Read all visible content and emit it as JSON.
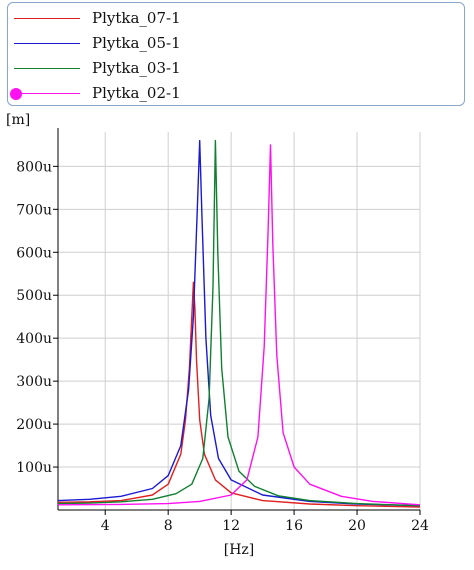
{
  "chart_data": {
    "type": "line",
    "x_unit": "[Hz]",
    "y_unit": "[m]",
    "xlim": [
      1,
      24
    ],
    "ylim": [
      0,
      880
    ],
    "x_ticks": [
      4,
      8,
      12,
      16,
      20,
      24
    ],
    "x_tick_labels": [
      "4",
      "8",
      "12",
      "16",
      "20",
      "24"
    ],
    "y_ticks": [
      100,
      200,
      300,
      400,
      500,
      600,
      700,
      800
    ],
    "y_tick_labels": [
      "100u",
      "200u",
      "300u",
      "400u",
      "500u",
      "600u",
      "700u",
      "800u"
    ],
    "grid": true,
    "legend_position": "top",
    "series": [
      {
        "name": "Plytka_07-1",
        "color": "#e02020",
        "marker": false,
        "points": [
          [
            1,
            18
          ],
          [
            3,
            19
          ],
          [
            5,
            22
          ],
          [
            7,
            35
          ],
          [
            8,
            60
          ],
          [
            8.8,
            130
          ],
          [
            9.1,
            210
          ],
          [
            9.35,
            330
          ],
          [
            9.5,
            450
          ],
          [
            9.6,
            530
          ],
          [
            9.7,
            470
          ],
          [
            9.8,
            350
          ],
          [
            10,
            210
          ],
          [
            10.3,
            130
          ],
          [
            11,
            70
          ],
          [
            12,
            40
          ],
          [
            14,
            22
          ],
          [
            17,
            14
          ],
          [
            20,
            10
          ],
          [
            24,
            7
          ]
        ]
      },
      {
        "name": "Plytka_05-1",
        "color": "#1a1ad0",
        "marker": false,
        "points": [
          [
            1,
            22
          ],
          [
            3,
            25
          ],
          [
            5,
            32
          ],
          [
            7,
            50
          ],
          [
            8,
            80
          ],
          [
            8.8,
            150
          ],
          [
            9.3,
            280
          ],
          [
            9.6,
            450
          ],
          [
            9.85,
            700
          ],
          [
            10,
            860
          ],
          [
            10.15,
            680
          ],
          [
            10.4,
            400
          ],
          [
            10.7,
            220
          ],
          [
            11.2,
            120
          ],
          [
            12,
            70
          ],
          [
            14,
            35
          ],
          [
            17,
            20
          ],
          [
            20,
            14
          ],
          [
            24,
            10
          ]
        ]
      },
      {
        "name": "Plytka_03-1",
        "color": "#108030",
        "marker": false,
        "points": [
          [
            1,
            15
          ],
          [
            3,
            16
          ],
          [
            5,
            19
          ],
          [
            7,
            25
          ],
          [
            8.5,
            38
          ],
          [
            9.5,
            60
          ],
          [
            10.2,
            120
          ],
          [
            10.6,
            260
          ],
          [
            10.85,
            520
          ],
          [
            11,
            860
          ],
          [
            11.15,
            600
          ],
          [
            11.4,
            330
          ],
          [
            11.8,
            170
          ],
          [
            12.5,
            90
          ],
          [
            13.5,
            55
          ],
          [
            15,
            33
          ],
          [
            17,
            22
          ],
          [
            20,
            15
          ],
          [
            24,
            10
          ]
        ]
      },
      {
        "name": "Plytka_02-1",
        "color": "#ff10f0",
        "marker": true,
        "points": [
          [
            1,
            12
          ],
          [
            5,
            13
          ],
          [
            8,
            15
          ],
          [
            10,
            20
          ],
          [
            12,
            35
          ],
          [
            13,
            70
          ],
          [
            13.7,
            170
          ],
          [
            14.1,
            380
          ],
          [
            14.35,
            650
          ],
          [
            14.5,
            850
          ],
          [
            14.65,
            620
          ],
          [
            14.9,
            360
          ],
          [
            15.3,
            180
          ],
          [
            16,
            100
          ],
          [
            17,
            60
          ],
          [
            19,
            32
          ],
          [
            21,
            20
          ],
          [
            24,
            12
          ]
        ]
      }
    ]
  }
}
